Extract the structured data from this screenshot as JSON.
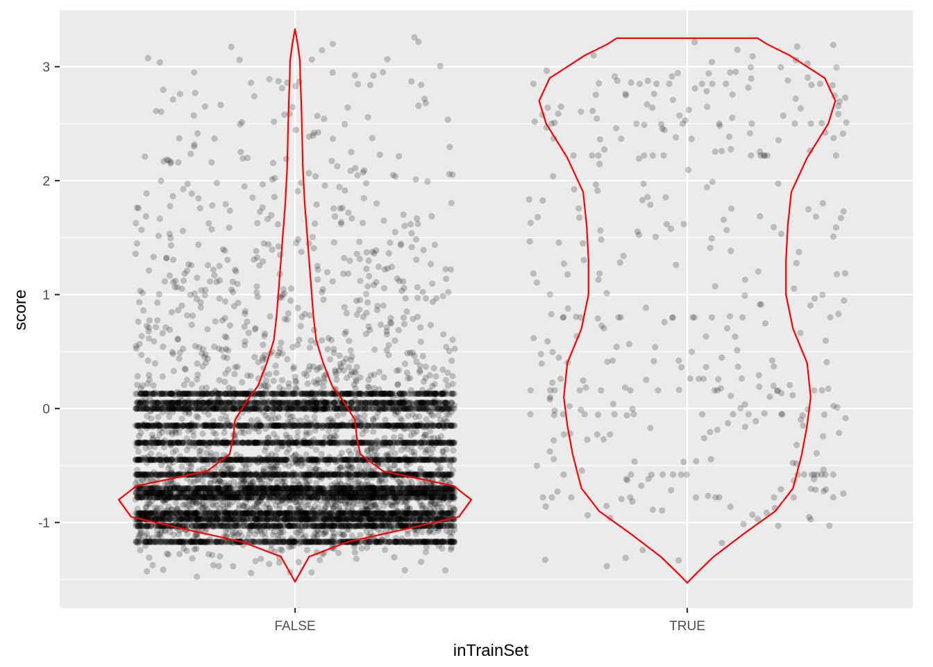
{
  "chart_data": {
    "type": "scatter",
    "subtype": "jitter-with-violin",
    "title": "",
    "xlabel": "inTrainSet",
    "ylabel": "score",
    "categories": [
      "FALSE",
      "TRUE"
    ],
    "ylim": [
      -1.75,
      3.5
    ],
    "yticks": [
      -1,
      0,
      1,
      2,
      3
    ],
    "grid": true,
    "legend": "none",
    "colors": {
      "panel_background": "#ebebeb",
      "grid": "#ffffff",
      "points": "#000000",
      "violin_outline": "#ff0000"
    },
    "point_alpha": 0.2,
    "series": [
      {
        "category": "FALSE",
        "approx_point_count": 9000,
        "y_range": [
          -1.52,
          3.33
        ],
        "dense_score_levels": [
          -1.17,
          -1.03,
          -0.97,
          -0.92,
          -0.78,
          -0.74,
          -0.7,
          -0.58,
          -0.45,
          -0.3,
          -0.15,
          0.0,
          0.05,
          0.13
        ],
        "violin_density_profile": [
          {
            "score": -1.52,
            "width": 0.0
          },
          {
            "score": -1.3,
            "width": 0.08
          },
          {
            "score": -1.17,
            "width": 0.3
          },
          {
            "score": -1.05,
            "width": 0.65
          },
          {
            "score": -0.95,
            "width": 0.93
          },
          {
            "score": -0.8,
            "width": 1.0
          },
          {
            "score": -0.68,
            "width": 0.9
          },
          {
            "score": -0.55,
            "width": 0.5
          },
          {
            "score": -0.4,
            "width": 0.37
          },
          {
            "score": -0.25,
            "width": 0.35
          },
          {
            "score": -0.1,
            "width": 0.34
          },
          {
            "score": 0.05,
            "width": 0.28
          },
          {
            "score": 0.2,
            "width": 0.21
          },
          {
            "score": 0.4,
            "width": 0.16
          },
          {
            "score": 0.6,
            "width": 0.12
          },
          {
            "score": 0.8,
            "width": 0.105
          },
          {
            "score": 1.0,
            "width": 0.095
          },
          {
            "score": 1.2,
            "width": 0.085
          },
          {
            "score": 1.5,
            "width": 0.07
          },
          {
            "score": 1.8,
            "width": 0.055
          },
          {
            "score": 2.1,
            "width": 0.045
          },
          {
            "score": 2.4,
            "width": 0.04
          },
          {
            "score": 2.7,
            "width": 0.035
          },
          {
            "score": 2.9,
            "width": 0.03
          },
          {
            "score": 3.05,
            "width": 0.028
          },
          {
            "score": 3.2,
            "width": 0.015
          },
          {
            "score": 3.33,
            "width": 0.0
          }
        ]
      },
      {
        "category": "TRUE",
        "approx_point_count": 400,
        "y_range": [
          -1.53,
          3.25
        ],
        "dense_score_levels": [
          -0.78,
          -0.58,
          -0.05,
          0.16,
          0.8,
          2.22,
          2.5,
          2.85
        ],
        "violin_density_profile": [
          {
            "score": -1.53,
            "width": 0.0
          },
          {
            "score": -1.45,
            "width": 0.05
          },
          {
            "score": -1.3,
            "width": 0.15
          },
          {
            "score": -1.1,
            "width": 0.32
          },
          {
            "score": -0.9,
            "width": 0.5
          },
          {
            "score": -0.7,
            "width": 0.6
          },
          {
            "score": -0.4,
            "width": 0.65
          },
          {
            "score": -0.15,
            "width": 0.68
          },
          {
            "score": 0.1,
            "width": 0.7
          },
          {
            "score": 0.4,
            "width": 0.68
          },
          {
            "score": 0.7,
            "width": 0.6
          },
          {
            "score": 1.0,
            "width": 0.56
          },
          {
            "score": 1.3,
            "width": 0.56
          },
          {
            "score": 1.6,
            "width": 0.57
          },
          {
            "score": 1.9,
            "width": 0.59
          },
          {
            "score": 2.2,
            "width": 0.68
          },
          {
            "score": 2.5,
            "width": 0.8
          },
          {
            "score": 2.7,
            "width": 0.84
          },
          {
            "score": 2.9,
            "width": 0.78
          },
          {
            "score": 3.1,
            "width": 0.58
          },
          {
            "score": 3.2,
            "width": 0.45
          },
          {
            "score": 3.25,
            "width": 0.4
          }
        ]
      }
    ]
  }
}
